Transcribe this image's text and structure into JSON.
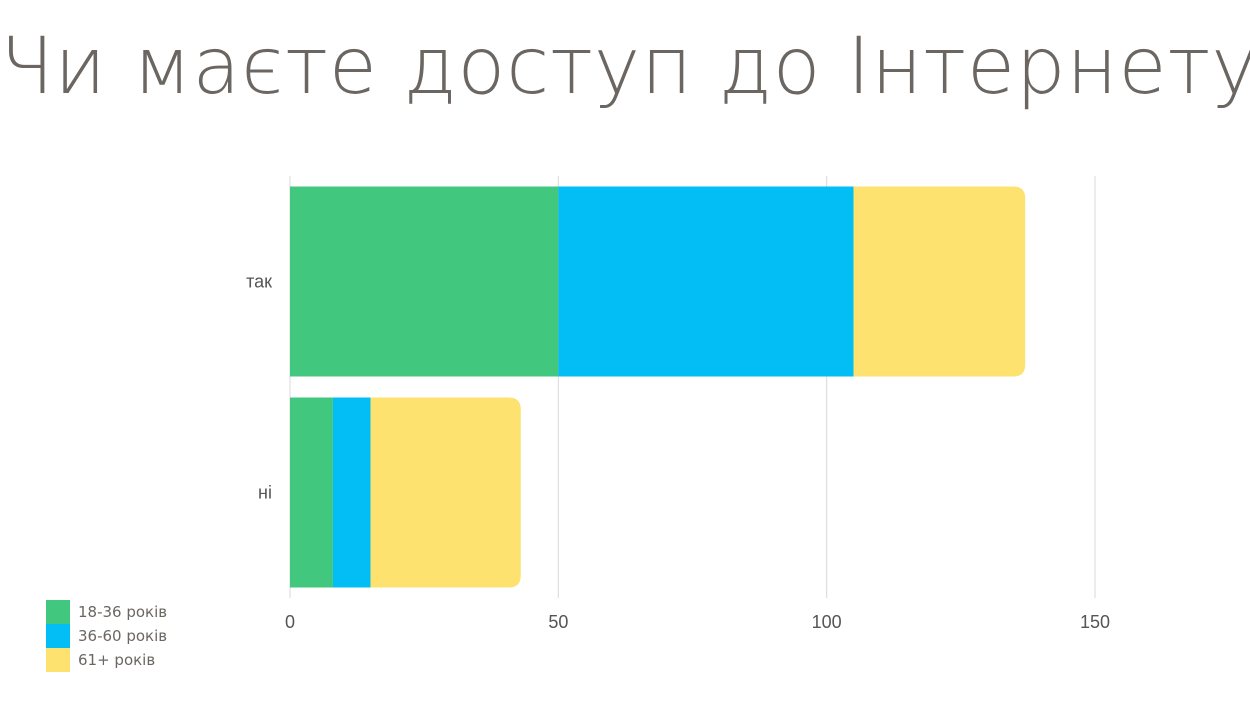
{
  "title": "Чи маєте доступ до Інтернету?",
  "chart_data": {
    "type": "bar",
    "orientation": "horizontal",
    "stacked": true,
    "categories": [
      "так",
      "ні"
    ],
    "series": [
      {
        "name": "18-36 років",
        "color": "#41c77e",
        "values": [
          50,
          8
        ]
      },
      {
        "name": "36-60 років",
        "color": "#03bef4",
        "values": [
          55,
          7
        ]
      },
      {
        "name": "61+ років",
        "color": "#fee270",
        "values": [
          32,
          28
        ]
      }
    ],
    "xlim": [
      0,
      175
    ],
    "xticks": [
      0,
      50,
      100,
      150
    ],
    "grid": true,
    "legend": "bottom-left"
  }
}
